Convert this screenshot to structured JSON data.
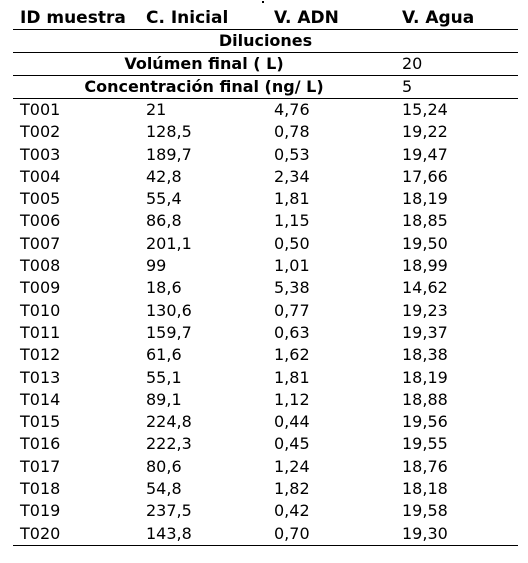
{
  "table": {
    "title": "Diluciones",
    "params": [
      {
        "label": "Volúmen final ( L)",
        "value": "20"
      },
      {
        "label": "Concentración final (ng/ L)",
        "value": "5"
      }
    ],
    "columns": [
      "ID muestra",
      "C. Inicial",
      "V. ADN",
      "V. Agua"
    ],
    "rows": [
      [
        "T001",
        "21",
        "4,76",
        "15,24"
      ],
      [
        "T002",
        "128,5",
        "0,78",
        "19,22"
      ],
      [
        "T003",
        "189,7",
        "0,53",
        "19,47"
      ],
      [
        "T004",
        "42,8",
        "2,34",
        "17,66"
      ],
      [
        "T005",
        "55,4",
        "1,81",
        "18,19"
      ],
      [
        "T006",
        "86,8",
        "1,15",
        "18,85"
      ],
      [
        "T007",
        "201,1",
        "0,50",
        "19,50"
      ],
      [
        "T008",
        "99",
        "1,01",
        "18,99"
      ],
      [
        "T009",
        "18,6",
        "5,38",
        "14,62"
      ],
      [
        "T010",
        "130,6",
        "0,77",
        "19,23"
      ],
      [
        "T011",
        "159,7",
        "0,63",
        "19,37"
      ],
      [
        "T012",
        "61,6",
        "1,62",
        "18,38"
      ],
      [
        "T013",
        "55,1",
        "1,81",
        "18,19"
      ],
      [
        "T014",
        "89,1",
        "1,12",
        "18,88"
      ],
      [
        "T015",
        "224,8",
        "0,44",
        "19,56"
      ],
      [
        "T016",
        "222,3",
        "0,45",
        "19,55"
      ],
      [
        "T017",
        "80,6",
        "1,24",
        "18,76"
      ],
      [
        "T018",
        "54,8",
        "1,82",
        "18,18"
      ],
      [
        "T019",
        "237,5",
        "0,42",
        "19,58"
      ],
      [
        "T020",
        "143,8",
        "0,70",
        "19,30"
      ]
    ]
  }
}
